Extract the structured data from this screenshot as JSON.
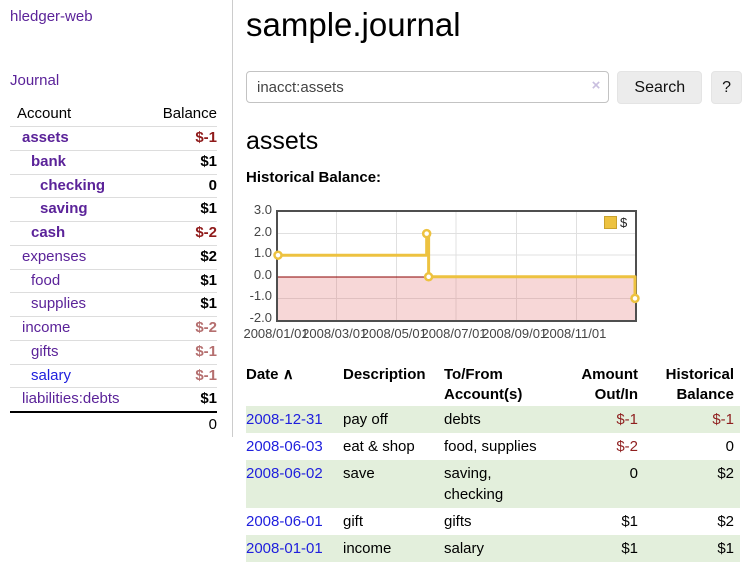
{
  "sidebar": {
    "app_title": "hledger-web",
    "nav": {
      "journal": "Journal"
    },
    "accounts_table": {
      "headers": [
        "Account",
        "Balance"
      ],
      "rows": [
        {
          "account": "assets",
          "depth": 1,
          "bold": true,
          "balance": "$-1",
          "balance_style": "neg-strong"
        },
        {
          "account": "bank",
          "depth": 2,
          "bold": true,
          "balance": "$1",
          "balance_style": "pos"
        },
        {
          "account": "checking",
          "depth": 3,
          "bold": true,
          "balance": "0",
          "balance_style": "pos"
        },
        {
          "account": "saving",
          "depth": 3,
          "bold": true,
          "balance": "$1",
          "balance_style": "pos"
        },
        {
          "account": "cash",
          "depth": 2,
          "bold": true,
          "balance": "$-2",
          "balance_style": "neg-strong"
        },
        {
          "account": "expenses",
          "depth": 1,
          "bold": false,
          "balance": "$2",
          "balance_style": "pos"
        },
        {
          "account": "food",
          "depth": 2,
          "bold": false,
          "balance": "$1",
          "balance_style": "pos"
        },
        {
          "account": "supplies",
          "depth": 2,
          "bold": false,
          "balance": "$1",
          "balance_style": "pos"
        },
        {
          "account": "income",
          "depth": 1,
          "bold": false,
          "balance": "$-2",
          "balance_style": "neg-muted"
        },
        {
          "account": "gifts",
          "depth": 2,
          "bold": false,
          "balance": "$-1",
          "balance_style": "neg-muted"
        },
        {
          "account": "salary",
          "depth": 2,
          "bold": false,
          "link_color": "blue",
          "balance": "$-1",
          "balance_style": "neg-muted"
        },
        {
          "account": "liabilities:debts",
          "depth": 1,
          "bold": false,
          "balance": "$1",
          "balance_style": "pos"
        }
      ],
      "total": "0"
    }
  },
  "header": {
    "title": "sample.journal"
  },
  "search": {
    "value": "inacct:assets",
    "clear_icon": "×",
    "search_label": "Search",
    "help_label": "?"
  },
  "account_page": {
    "heading": "assets",
    "chart_label": "Historical Balance:"
  },
  "chart_data": {
    "type": "line",
    "step": true,
    "title": "Historical Balance",
    "series": [
      {
        "name": "$",
        "color": "#edc240",
        "points": [
          {
            "date": "2008-01-01",
            "value": 1
          },
          {
            "date": "2008-06-01",
            "value": 2
          },
          {
            "date": "2008-06-03",
            "value": 0
          },
          {
            "date": "2008-12-31",
            "value": -1
          }
        ]
      }
    ],
    "x_range": [
      "2008-01-01",
      "2008-12-31"
    ],
    "x_ticks": [
      {
        "date": "2008-01-01",
        "label": "2008/01/01"
      },
      {
        "date": "2008-03-01",
        "label": "2008/03/01"
      },
      {
        "date": "2008-05-01",
        "label": "2008/05/01"
      },
      {
        "date": "2008-07-01",
        "label": "2008/07/01"
      },
      {
        "date": "2008-09-01",
        "label": "2008/09/01"
      },
      {
        "date": "2008-11-01",
        "label": "2008/11/01"
      }
    ],
    "y_ticks": [
      3.0,
      2.0,
      1.0,
      0.0,
      -1.0,
      -2.0
    ],
    "ylim": [
      -2,
      3
    ],
    "grid": true,
    "negative_region_color": "rgba(225,95,95,0.25)",
    "zero_line_color": "#8b0000",
    "legend": {
      "position": "top-right",
      "label": "$",
      "swatch_color": "#edc240"
    }
  },
  "register_table": {
    "headers": {
      "date": "Date",
      "sort_icon": "∧",
      "description": "Description",
      "accounts": "To/From Account(s)",
      "amount": "Amount Out/In",
      "balance": "Historical Balance"
    },
    "rows": [
      {
        "date": "2008-12-31",
        "description": "pay off",
        "accounts": "debts",
        "amount": "$-1",
        "amount_neg": true,
        "balance": "$-1",
        "balance_neg": true
      },
      {
        "date": "2008-06-03",
        "description": "eat & shop",
        "accounts": "food, supplies",
        "amount": "$-2",
        "amount_neg": true,
        "balance": "0",
        "balance_neg": false
      },
      {
        "date": "2008-06-02",
        "description": "save",
        "accounts": "saving, checking",
        "amount": "0",
        "amount_neg": false,
        "balance": "$2",
        "balance_neg": false
      },
      {
        "date": "2008-06-01",
        "description": "gift",
        "accounts": "gifts",
        "amount": "$1",
        "amount_neg": false,
        "balance": "$2",
        "balance_neg": false
      },
      {
        "date": "2008-01-01",
        "description": "income",
        "accounts": "salary",
        "amount": "$1",
        "amount_neg": false,
        "balance": "$1",
        "balance_neg": false
      }
    ]
  }
}
